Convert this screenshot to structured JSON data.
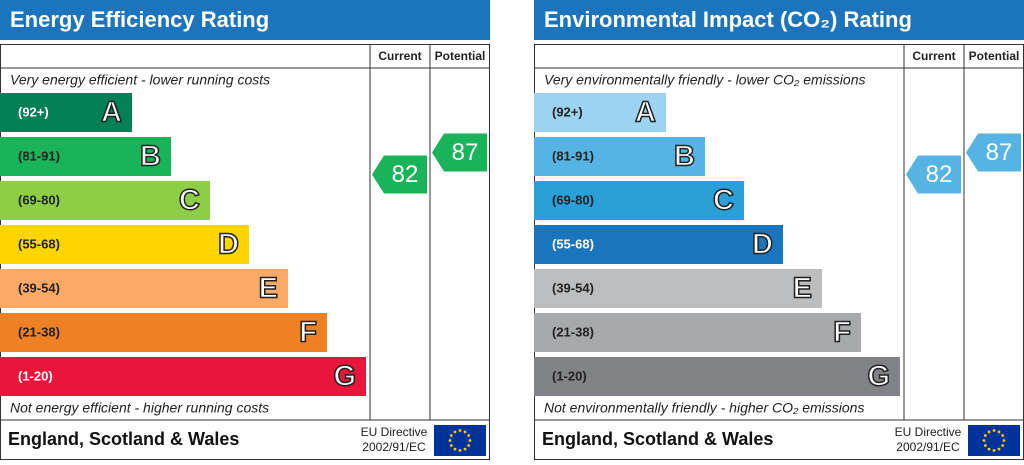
{
  "panels": [
    {
      "title": "Energy Efficiency Rating",
      "headers": [
        "Current",
        "Potential"
      ],
      "top_note": "Very energy efficient - lower running costs",
      "bands": [
        {
          "range": "(92+)",
          "letter": "A",
          "color": "#008054"
        },
        {
          "range": "(81-91)",
          "letter": "B",
          "color": "#19b459"
        },
        {
          "range": "(69-80)",
          "letter": "C",
          "color": "#8dce46"
        },
        {
          "range": "(55-68)",
          "letter": "D",
          "color": "#ffd500"
        },
        {
          "range": "(39-54)",
          "letter": "E",
          "color": "#fcaa65"
        },
        {
          "range": "(21-38)",
          "letter": "F",
          "color": "#ef8023"
        },
        {
          "range": "(1-20)",
          "letter": "G",
          "color": "#e9153b"
        }
      ],
      "bottom_note": "Not energy efficient - higher running costs",
      "footer": "England, Scotland & Wales",
      "directive": [
        "EU Directive",
        "2002/91/EC"
      ],
      "current": 82,
      "potential": 87
    },
    {
      "title": "Environmental Impact (CO₂) Rating",
      "headers": [
        "Current",
        "Potential"
      ],
      "top_note": "Very environmentally friendly - lower CO₂ emissions",
      "bands": [
        {
          "range": "(92+)",
          "letter": "A",
          "color": "#9cd3f0"
        },
        {
          "range": "(81-91)",
          "letter": "B",
          "color": "#55b4e3"
        },
        {
          "range": "(69-80)",
          "letter": "C",
          "color": "#2a9fd8"
        },
        {
          "range": "(55-68)",
          "letter": "D",
          "color": "#1b75bc"
        },
        {
          "range": "(39-54)",
          "letter": "E",
          "color": "#bbbdbf"
        },
        {
          "range": "(21-38)",
          "letter": "F",
          "color": "#a7a9ac"
        },
        {
          "range": "(1-20)",
          "letter": "G",
          "color": "#808285"
        }
      ],
      "bottom_note": "Not environmentally friendly - higher CO₂ emissions",
      "footer": "England, Scotland & Wales",
      "directive": [
        "EU Directive",
        "2002/91/EC"
      ],
      "current": 82,
      "potential": 87
    }
  ]
}
